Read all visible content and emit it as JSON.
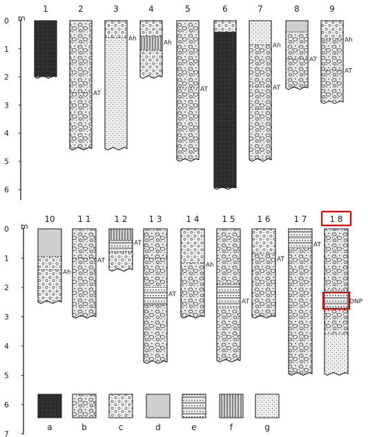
{
  "panels": [
    {
      "id": "top",
      "axis_unit": "m",
      "ticks": [
        "0",
        "1",
        "2",
        "3",
        "4",
        "5",
        "6"
      ],
      "columns": [
        {
          "num": "1",
          "depth": 2.0,
          "layers": [
            {
              "to": 2.0,
              "pat": "a"
            }
          ],
          "labels": []
        },
        {
          "num": "2",
          "depth": 4.55,
          "layers": [
            {
              "to": 2.55,
              "pat": "b"
            },
            {
              "to": 4.55,
              "pat": "b"
            }
          ],
          "labels": [
            {
              "text": "AT",
              "at": 2.55
            }
          ]
        },
        {
          "num": "3",
          "depth": 4.55,
          "layers": [
            {
              "to": 0.6,
              "pat": "c"
            },
            {
              "to": 4.55,
              "pat": "g"
            }
          ],
          "labels": [
            {
              "text": "Ah",
              "at": 0.6
            }
          ]
        },
        {
          "num": "4",
          "depth": 2.0,
          "layers": [
            {
              "to": 0.55,
              "pat": "c"
            },
            {
              "to": 1.05,
              "pat": "f"
            },
            {
              "to": 2.0,
              "pat": "c"
            }
          ],
          "labels": [
            {
              "text": "Ah",
              "at": 0.75
            }
          ]
        },
        {
          "num": "5",
          "depth": 4.95,
          "layers": [
            {
              "to": 2.4,
              "pat": "b"
            },
            {
              "to": 4.95,
              "pat": "b"
            }
          ],
          "labels": [
            {
              "text": "AT",
              "at": 2.4
            }
          ]
        },
        {
          "num": "6",
          "depth": 5.95,
          "layers": [
            {
              "to": 0.4,
              "pat": "c"
            },
            {
              "to": 1.4,
              "pat": "a"
            },
            {
              "to": 5.95,
              "pat": "a"
            }
          ],
          "labels": []
        },
        {
          "num": "7",
          "depth": 4.95,
          "layers": [
            {
              "to": 0.85,
              "pat": "g"
            },
            {
              "to": 2.35,
              "pat": "b"
            },
            {
              "to": 3.15,
              "pat": "b"
            },
            {
              "to": 4.95,
              "pat": "b"
            }
          ],
          "labels": [
            {
              "text": "Ah",
              "at": 0.85
            },
            {
              "text": "AT",
              "at": 2.35
            }
          ]
        },
        {
          "num": "8",
          "depth": 2.4,
          "layers": [
            {
              "to": 0.4,
              "pat": "d"
            },
            {
              "to": 1.35,
              "pat": "b"
            },
            {
              "to": 2.4,
              "pat": "b"
            }
          ],
          "labels": [
            {
              "text": "AT",
              "at": 1.35
            }
          ]
        },
        {
          "num": "9",
          "depth": 2.9,
          "layers": [
            {
              "to": 0.65,
              "pat": "c"
            },
            {
              "to": 1.75,
              "pat": "b"
            },
            {
              "to": 2.9,
              "pat": "b"
            }
          ],
          "labels": [
            {
              "text": "Ah",
              "at": 0.65
            },
            {
              "text": "AT",
              "at": 1.75
            }
          ]
        }
      ]
    },
    {
      "id": "bottom",
      "axis_unit": "m",
      "ticks": [
        "0",
        "1",
        "2",
        "3",
        "4",
        "5",
        "6",
        "7"
      ],
      "columns": [
        {
          "num": "10",
          "depth": 2.5,
          "layers": [
            {
              "to": 0.95,
              "pat": "d"
            },
            {
              "to": 1.4,
              "pat": "c"
            },
            {
              "to": 2.5,
              "pat": "c"
            }
          ],
          "labels": [
            {
              "text": "Ah",
              "at": 1.45
            }
          ]
        },
        {
          "num": "1 1",
          "depth": 3.0,
          "layers": [
            {
              "to": 1.0,
              "pat": "b"
            },
            {
              "to": 3.0,
              "pat": "b"
            }
          ],
          "labels": [
            {
              "text": "AT",
              "at": 1.05
            }
          ]
        },
        {
          "num": "1 2",
          "depth": 1.4,
          "layers": [
            {
              "to": 0.4,
              "pat": "f"
            },
            {
              "to": 0.8,
              "pat": "e"
            },
            {
              "to": 1.4,
              "pat": "c"
            }
          ],
          "labels": [
            {
              "text": "AT",
              "at": 0.45
            }
          ]
        },
        {
          "num": "1 3",
          "depth": 4.55,
          "layers": [
            {
              "to": 1.0,
              "pat": "b"
            },
            {
              "to": 2.0,
              "pat": "b"
            },
            {
              "to": 2.6,
              "pat": "e"
            },
            {
              "to": 4.55,
              "pat": "b"
            }
          ],
          "labels": [
            {
              "text": "AT",
              "at": 2.2
            }
          ]
        },
        {
          "num": "1 4",
          "depth": 3.0,
          "layers": [
            {
              "to": 1.15,
              "pat": "c"
            },
            {
              "to": 3.0,
              "pat": "b"
            }
          ],
          "labels": [
            {
              "text": "Ah",
              "at": 1.2
            }
          ]
        },
        {
          "num": "1 5",
          "depth": 4.5,
          "layers": [
            {
              "to": 1.9,
              "pat": "b"
            },
            {
              "to": 2.7,
              "pat": "e"
            },
            {
              "to": 4.5,
              "pat": "b"
            }
          ],
          "labels": [
            {
              "text": "AT",
              "at": 2.45
            }
          ]
        },
        {
          "num": "1 6",
          "depth": 3.0,
          "layers": [
            {
              "to": 0.85,
              "pat": "c"
            },
            {
              "to": 3.0,
              "pat": "b"
            }
          ],
          "labels": [
            {
              "text": "AT",
              "at": 1.0
            }
          ]
        },
        {
          "num": "1 7",
          "depth": 4.95,
          "layers": [
            {
              "to": 0.65,
              "pat": "e"
            },
            {
              "to": 4.95,
              "pat": "b"
            }
          ],
          "labels": [
            {
              "text": "AT",
              "at": 0.5
            }
          ]
        },
        {
          "num": "1 8",
          "depth": 4.95,
          "layers": [
            {
              "to": 2.1,
              "pat": "b"
            },
            {
              "to": 2.7,
              "pat": "e"
            },
            {
              "to": 3.6,
              "pat": "b"
            },
            {
              "to": 4.95,
              "pat": "g"
            }
          ],
          "labels": [
            {
              "text": "DNP",
              "at": 2.45
            }
          ],
          "highlight": true
        }
      ]
    }
  ],
  "legend": [
    {
      "key": "a",
      "pat": "a"
    },
    {
      "key": "b",
      "pat": "b"
    },
    {
      "key": "c",
      "pat": "c"
    },
    {
      "key": "d",
      "pat": "d"
    },
    {
      "key": "e",
      "pat": "e"
    },
    {
      "key": "f",
      "pat": "f"
    },
    {
      "key": "g",
      "pat": "g"
    }
  ],
  "colors": {
    "highlight": "#e00000",
    "ink": "#1a1a1a",
    "background": "#ffffff"
  }
}
